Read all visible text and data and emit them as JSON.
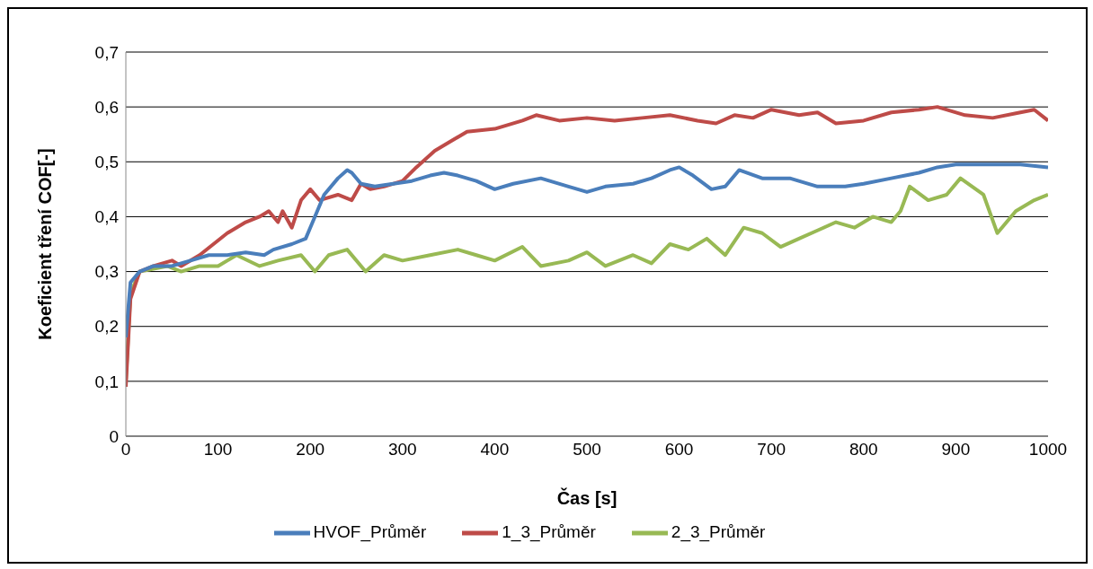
{
  "chart_data": {
    "type": "line",
    "xlabel": "Čas [s]",
    "ylabel": "Koeficient tření COF[-]",
    "xlim": [
      0,
      1000
    ],
    "xticks": [
      0,
      100,
      200,
      300,
      400,
      500,
      600,
      700,
      800,
      900,
      1000
    ],
    "ylim": [
      0,
      0.7
    ],
    "yticks": [
      {
        "value": 0,
        "label": "0"
      },
      {
        "value": 0.1,
        "label": "0,1"
      },
      {
        "value": 0.2,
        "label": "0,2"
      },
      {
        "value": 0.3,
        "label": "0,3"
      },
      {
        "value": 0.4,
        "label": "0,4"
      },
      {
        "value": 0.5,
        "label": "0,5"
      },
      {
        "value": 0.6,
        "label": "0,6"
      },
      {
        "value": 0.7,
        "label": "0,7"
      }
    ],
    "grid": "y",
    "legend": "bottom",
    "marker": "none",
    "line_style": "solid",
    "series": [
      {
        "name": "HVOF_Průměr",
        "color": "#4a7ebb",
        "x": [
          0,
          5,
          15,
          30,
          50,
          70,
          90,
          110,
          130,
          150,
          160,
          180,
          195,
          205,
          215,
          230,
          240,
          245,
          255,
          270,
          290,
          310,
          330,
          345,
          360,
          380,
          400,
          420,
          450,
          480,
          500,
          520,
          550,
          570,
          590,
          600,
          615,
          635,
          650,
          665,
          690,
          720,
          750,
          780,
          800,
          830,
          860,
          880,
          900,
          940,
          970,
          1000
        ],
        "values": [
          0.18,
          0.28,
          0.3,
          0.31,
          0.31,
          0.32,
          0.33,
          0.33,
          0.335,
          0.33,
          0.34,
          0.35,
          0.36,
          0.4,
          0.44,
          0.47,
          0.485,
          0.48,
          0.46,
          0.455,
          0.46,
          0.465,
          0.475,
          0.48,
          0.475,
          0.465,
          0.45,
          0.46,
          0.47,
          0.455,
          0.445,
          0.455,
          0.46,
          0.47,
          0.485,
          0.49,
          0.475,
          0.45,
          0.455,
          0.485,
          0.47,
          0.47,
          0.455,
          0.455,
          0.46,
          0.47,
          0.48,
          0.49,
          0.495,
          0.495,
          0.495,
          0.49
        ]
      },
      {
        "name": "1_3_Průměr",
        "color": "#be4b48",
        "x": [
          0,
          5,
          15,
          30,
          50,
          60,
          80,
          95,
          110,
          130,
          145,
          155,
          165,
          170,
          180,
          190,
          200,
          210,
          230,
          245,
          255,
          265,
          280,
          300,
          315,
          335,
          355,
          370,
          400,
          430,
          445,
          470,
          500,
          530,
          560,
          590,
          620,
          640,
          660,
          680,
          700,
          730,
          750,
          770,
          800,
          830,
          860,
          880,
          910,
          940,
          970,
          985,
          1000
        ],
        "values": [
          0.09,
          0.25,
          0.3,
          0.31,
          0.32,
          0.31,
          0.33,
          0.35,
          0.37,
          0.39,
          0.4,
          0.41,
          0.39,
          0.41,
          0.38,
          0.43,
          0.45,
          0.43,
          0.44,
          0.43,
          0.46,
          0.45,
          0.455,
          0.465,
          0.49,
          0.52,
          0.54,
          0.555,
          0.56,
          0.575,
          0.585,
          0.575,
          0.58,
          0.575,
          0.58,
          0.585,
          0.575,
          0.57,
          0.585,
          0.58,
          0.595,
          0.585,
          0.59,
          0.57,
          0.575,
          0.59,
          0.595,
          0.6,
          0.585,
          0.58,
          0.59,
          0.595,
          0.575
        ]
      },
      {
        "name": "2_3_Průměr",
        "color": "#98b954",
        "x": [
          0,
          5,
          15,
          30,
          45,
          60,
          80,
          100,
          120,
          145,
          165,
          190,
          205,
          220,
          240,
          260,
          280,
          300,
          330,
          360,
          380,
          400,
          430,
          450,
          480,
          500,
          520,
          550,
          570,
          590,
          610,
          630,
          650,
          670,
          690,
          710,
          730,
          750,
          770,
          790,
          810,
          830,
          840,
          850,
          870,
          890,
          905,
          930,
          945,
          965,
          985,
          1000
        ],
        "values": [
          0.1,
          0.26,
          0.3,
          0.305,
          0.31,
          0.3,
          0.31,
          0.31,
          0.33,
          0.31,
          0.32,
          0.33,
          0.3,
          0.33,
          0.34,
          0.3,
          0.33,
          0.32,
          0.33,
          0.34,
          0.33,
          0.32,
          0.345,
          0.31,
          0.32,
          0.335,
          0.31,
          0.33,
          0.315,
          0.35,
          0.34,
          0.36,
          0.33,
          0.38,
          0.37,
          0.345,
          0.36,
          0.375,
          0.39,
          0.38,
          0.4,
          0.39,
          0.41,
          0.455,
          0.43,
          0.44,
          0.47,
          0.44,
          0.37,
          0.41,
          0.43,
          0.44
        ]
      }
    ]
  }
}
